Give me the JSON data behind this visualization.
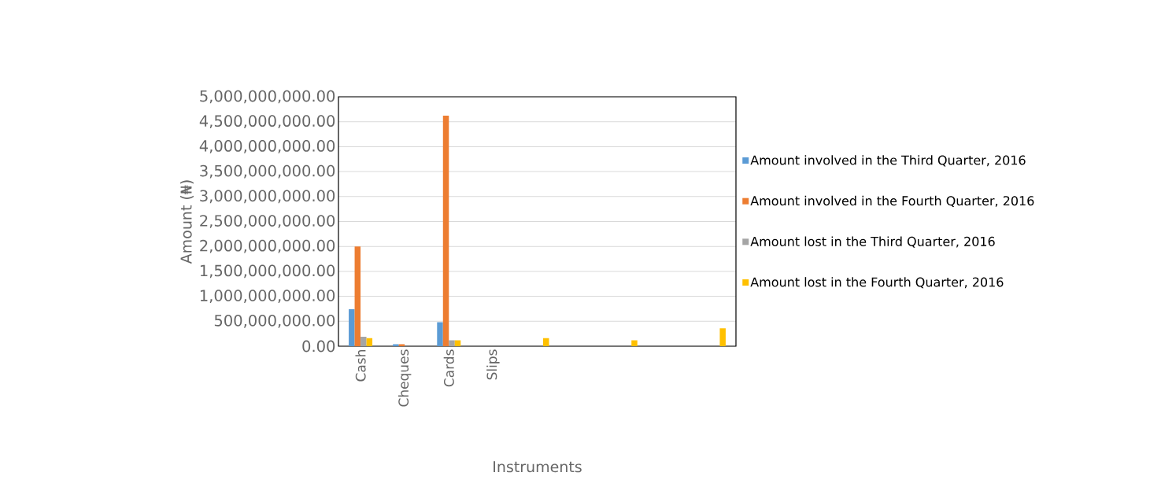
{
  "chart_data": {
    "type": "bar",
    "xlabel": "Instruments",
    "ylabel": "Amount (₦)",
    "categories": [
      "Cash",
      "Cheques",
      "Cards",
      "Slips",
      null,
      null,
      null,
      null,
      null
    ],
    "series": [
      {
        "name": "Amount involved in the Third Quarter, 2016",
        "color": "#5b9bd5",
        "values": [
          740000000,
          40000000,
          480000000,
          0,
          0,
          0,
          0,
          0,
          0
        ]
      },
      {
        "name": "Amount involved in the Fourth Quarter, 2016",
        "color": "#ed7d31",
        "values": [
          2000000000,
          40000000,
          4620000000,
          0,
          0,
          0,
          0,
          0,
          0
        ]
      },
      {
        "name": "Amount lost in the Third Quarter, 2016",
        "color": "#a5a5a5",
        "values": [
          190000000,
          0,
          120000000,
          0,
          0,
          0,
          0,
          0,
          0
        ]
      },
      {
        "name": "Amount lost in the Fourth Quarter, 2016",
        "color": "#ffc000",
        "values": [
          160000000,
          0,
          120000000,
          0,
          160000000,
          0,
          120000000,
          0,
          360000000
        ]
      }
    ],
    "ylim": [
      0,
      5000000000
    ],
    "yticks": [
      {
        "value": 0,
        "label": "0.00"
      },
      {
        "value": 500000000,
        "label": "500,000,000.00"
      },
      {
        "value": 1000000000,
        "label": "1,000,000,000.00"
      },
      {
        "value": 1500000000,
        "label": "1,500,000,000.00"
      },
      {
        "value": 2000000000,
        "label": "2,000,000,000.00"
      },
      {
        "value": 2500000000,
        "label": "2,500,000,000.00"
      },
      {
        "value": 3000000000,
        "label": "3,000,000,000.00"
      },
      {
        "value": 3500000000,
        "label": "3,500,000,000.00"
      },
      {
        "value": 4000000000,
        "label": "4,000,000,000.00"
      },
      {
        "value": 4500000000,
        "label": "4,500,000,000.00"
      },
      {
        "value": 5000000000,
        "label": "5,000,000,000.00"
      }
    ],
    "grid": "y",
    "legend": "right"
  }
}
